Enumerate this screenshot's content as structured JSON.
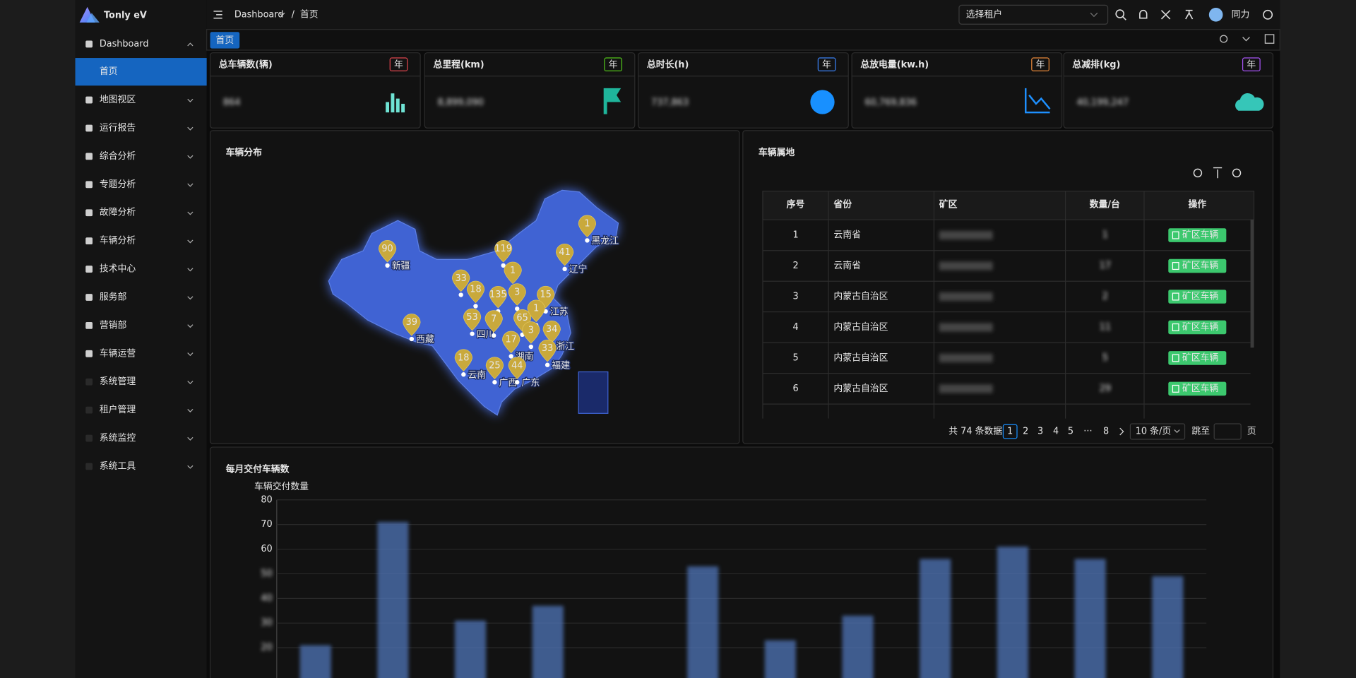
{
  "header": {
    "logo": "Tonly eV",
    "breadcrumb": [
      "Dashboard",
      "首页"
    ],
    "tenant_placeholder": "选择租户",
    "user": "同力"
  },
  "sidebar": {
    "items": [
      "Dashboard",
      "首页",
      "地图视区",
      "运行报告",
      "综合分析",
      "专题分析",
      "故障分析",
      "车辆分析",
      "技术中心",
      "服务部",
      "营销部",
      "车辆运营",
      "系统管理",
      "租户管理",
      "系统监控",
      "系统工具"
    ]
  },
  "tabs": [
    "首页"
  ],
  "stats": [
    {
      "title": "总车辆数(辆)",
      "badge": "年",
      "badge_color": "#e0464e",
      "value": "864"
    },
    {
      "title": "总里程(km)",
      "badge": "年",
      "badge_color": "#52c41a",
      "value": "8,899,090"
    },
    {
      "title": "总时长(h)",
      "badge": "年",
      "badge_color": "#3b82f6",
      "value": "737,863"
    },
    {
      "title": "总放电量(kw.h)",
      "badge": "年",
      "badge_color": "#e8893a",
      "value": "60,769,836"
    },
    {
      "title": "总减排(kg)",
      "badge": "年",
      "badge_color": "#a855f7",
      "value": "40,199,247"
    }
  ],
  "map": {
    "title": "车辆分布",
    "markers": [
      {
        "value": 1,
        "label": "黑龙江"
      },
      {
        "value": 90,
        "label": "新疆"
      },
      {
        "value": 119,
        "label": null
      },
      {
        "value": 41,
        "label": "辽宁"
      },
      {
        "value": 33,
        "label": null
      },
      {
        "value": 1,
        "label": null
      },
      {
        "value": 18,
        "label": null
      },
      {
        "value": 135,
        "label": null
      },
      {
        "value": 3,
        "label": null
      },
      {
        "value": 15,
        "label": "江苏"
      },
      {
        "value": 39,
        "label": "西藏"
      },
      {
        "value": 53,
        "label": "四川"
      },
      {
        "value": 7,
        "label": null
      },
      {
        "value": 65,
        "label": null
      },
      {
        "value": 1,
        "label": null
      },
      {
        "value": 3,
        "label": null
      },
      {
        "value": 34,
        "label": "浙江"
      },
      {
        "value": 17,
        "label": "湖南"
      },
      {
        "value": 33,
        "label": "福建"
      },
      {
        "value": 18,
        "label": "云南"
      },
      {
        "value": 25,
        "label": "广西"
      },
      {
        "value": 44,
        "label": "广东"
      }
    ]
  },
  "table": {
    "title": "车辆属地",
    "columns": [
      "序号",
      "省份",
      "矿区",
      "数量/台",
      "操作"
    ],
    "action": "矿区车辆",
    "rows": [
      [
        1,
        "云南省",
        1
      ],
      [
        2,
        "云南省",
        17
      ],
      [
        3,
        "内蒙古自治区",
        2
      ],
      [
        4,
        "内蒙古自治区",
        11
      ],
      [
        5,
        "内蒙古自治区",
        5
      ],
      [
        6,
        "内蒙古自治区",
        29
      ]
    ]
  },
  "pagination": {
    "total": "共 74 条数据",
    "pages": [
      "1",
      "2",
      "3",
      "4",
      "5",
      "···",
      "8"
    ],
    "page_size": "10 条/页",
    "goto": "跳至",
    "unit": "页"
  },
  "chart_data": {
    "type": "bar",
    "title": "每月交付车辆数",
    "y_label": "车辆交付数量",
    "categories": [
      null,
      null,
      null,
      null,
      null,
      null,
      null,
      null,
      null,
      null,
      null,
      null
    ],
    "values": [
      21,
      71,
      31,
      37,
      null,
      53,
      23,
      33,
      56,
      61,
      56,
      49
    ],
    "color": "#4f74b8",
    "ylim": [
      0,
      80
    ],
    "yticks": [
      20,
      30,
      40,
      50,
      60,
      70,
      80
    ],
    "grid": true
  }
}
